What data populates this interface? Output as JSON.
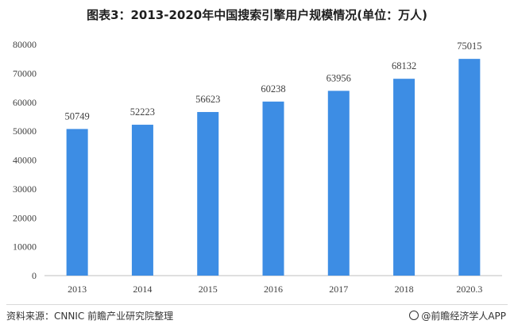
{
  "title": "图表3：2013-2020年中国搜索引擎用户规模情况(单位：万人)",
  "source": "资料来源：CNNIC 前瞻产业研究院整理",
  "brand": "@前瞻经济学人APP",
  "bar_color": "#3d8de4",
  "chart_data": {
    "type": "bar",
    "title": "图表3：2013-2020年中国搜索引擎用户规模情况(单位：万人)",
    "categories": [
      "2013",
      "2014",
      "2015",
      "2016",
      "2017",
      "2018",
      "2020.3"
    ],
    "values": [
      50749,
      52223,
      56623,
      60238,
      63956,
      68132,
      75015
    ],
    "xlabel": "",
    "ylabel": "",
    "ylim": [
      0,
      80000
    ],
    "yticks": [
      0,
      10000,
      20000,
      30000,
      40000,
      50000,
      60000,
      70000,
      80000
    ],
    "grid": false,
    "legend": "none"
  }
}
